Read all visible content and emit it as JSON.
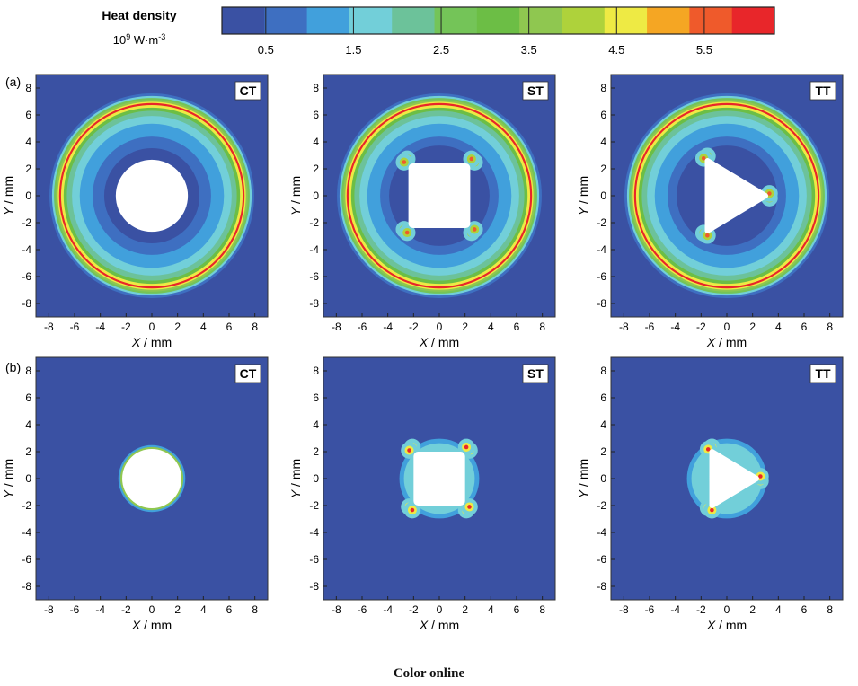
{
  "colorbar": {
    "title": "Heat density",
    "unit_base": "10",
    "unit_exp": "9",
    "unit_rest": " W·m",
    "unit_rest_exp": "-3",
    "colors": [
      "#3a51a3",
      "#3e6fc1",
      "#41a0dc",
      "#72cfd9",
      "#6cc29a",
      "#74c458",
      "#6cbe45",
      "#8fc750",
      "#aed23b",
      "#eeea44",
      "#f5a623",
      "#ef5a2b",
      "#e8262a"
    ],
    "tick_values": [
      0.5,
      1.5,
      2.5,
      3.5,
      4.5,
      5.5
    ],
    "tick_labels": [
      "0.5",
      "1.5",
      "2.5",
      "3.5",
      "4.5",
      "5.5"
    ]
  },
  "row_labels": [
    "(a)",
    "(b)"
  ],
  "panel_labels": [
    "CT",
    "ST",
    "TT"
  ],
  "caption": "Color online",
  "chart_data": [
    {
      "type": "heatmap",
      "row": "(a)",
      "tag": "CT",
      "shape": "circle",
      "xlabel_var": "X",
      "xlabel_unit": " / mm",
      "ylabel_var": "Y",
      "ylabel_unit": " / mm",
      "xlim": [
        -9,
        9
      ],
      "ylim": [
        -9,
        9
      ],
      "xticks": [
        -8,
        -6,
        -4,
        -2,
        0,
        2,
        4,
        6,
        8
      ],
      "yticks": [
        -8,
        -6,
        -4,
        -2,
        0,
        2,
        4,
        6,
        8
      ],
      "coil_radius_mm": 7.2,
      "hole_size_mm": 2.8,
      "max_heat_density": 6.3
    },
    {
      "type": "heatmap",
      "row": "(a)",
      "tag": "ST",
      "shape": "square",
      "xlabel_var": "X",
      "xlabel_unit": " / mm",
      "ylabel_var": "Y",
      "ylabel_unit": " / mm",
      "xlim": [
        -9,
        9
      ],
      "ylim": [
        -9,
        9
      ],
      "xticks": [
        -8,
        -6,
        -4,
        -2,
        0,
        2,
        4,
        6,
        8
      ],
      "yticks": [
        -8,
        -6,
        -4,
        -2,
        0,
        2,
        4,
        6,
        8
      ],
      "coil_radius_mm": 7.2,
      "hole_size_mm": 2.4,
      "max_heat_density": 6.3
    },
    {
      "type": "heatmap",
      "row": "(a)",
      "tag": "TT",
      "shape": "triangle",
      "xlabel_var": "X",
      "xlabel_unit": " / mm",
      "ylabel_var": "Y",
      "ylabel_unit": " / mm",
      "xlim": [
        -9,
        9
      ],
      "ylim": [
        -9,
        9
      ],
      "xticks": [
        -8,
        -6,
        -4,
        -2,
        0,
        2,
        4,
        6,
        8
      ],
      "yticks": [
        -8,
        -6,
        -4,
        -2,
        0,
        2,
        4,
        6,
        8
      ],
      "coil_radius_mm": 7.2,
      "hole_size_mm": 3.0,
      "max_heat_density": 6.3
    },
    {
      "type": "heatmap",
      "row": "(b)",
      "tag": "CT",
      "shape": "circle",
      "xlabel_var": "X",
      "xlabel_unit": " / mm",
      "ylabel_var": "Y",
      "ylabel_unit": " / mm",
      "xlim": [
        -9,
        9
      ],
      "ylim": [
        -9,
        9
      ],
      "xticks": [
        -8,
        -6,
        -4,
        -2,
        0,
        2,
        4,
        6,
        8
      ],
      "yticks": [
        -8,
        -6,
        -4,
        -2,
        0,
        2,
        4,
        6,
        8
      ],
      "hole_size_mm": 2.3,
      "max_heat_density": 4.0
    },
    {
      "type": "heatmap",
      "row": "(b)",
      "tag": "ST",
      "shape": "square",
      "xlabel_var": "X",
      "xlabel_unit": " / mm",
      "ylabel_var": "Y",
      "ylabel_unit": " / mm",
      "xlim": [
        -9,
        9
      ],
      "ylim": [
        -9,
        9
      ],
      "xticks": [
        -8,
        -6,
        -4,
        -2,
        0,
        2,
        4,
        6,
        8
      ],
      "yticks": [
        -8,
        -6,
        -4,
        -2,
        0,
        2,
        4,
        6,
        8
      ],
      "hole_size_mm": 2.0,
      "max_heat_density": 6.3
    },
    {
      "type": "heatmap",
      "row": "(b)",
      "tag": "TT",
      "shape": "triangle",
      "xlabel_var": "X",
      "xlabel_unit": " / mm",
      "ylabel_var": "Y",
      "ylabel_unit": " / mm",
      "xlim": [
        -9,
        9
      ],
      "ylim": [
        -9,
        9
      ],
      "xticks": [
        -8,
        -6,
        -4,
        -2,
        0,
        2,
        4,
        6,
        8
      ],
      "yticks": [
        -8,
        -6,
        -4,
        -2,
        0,
        2,
        4,
        6,
        8
      ],
      "hole_size_mm": 2.3,
      "max_heat_density": 6.3
    }
  ]
}
